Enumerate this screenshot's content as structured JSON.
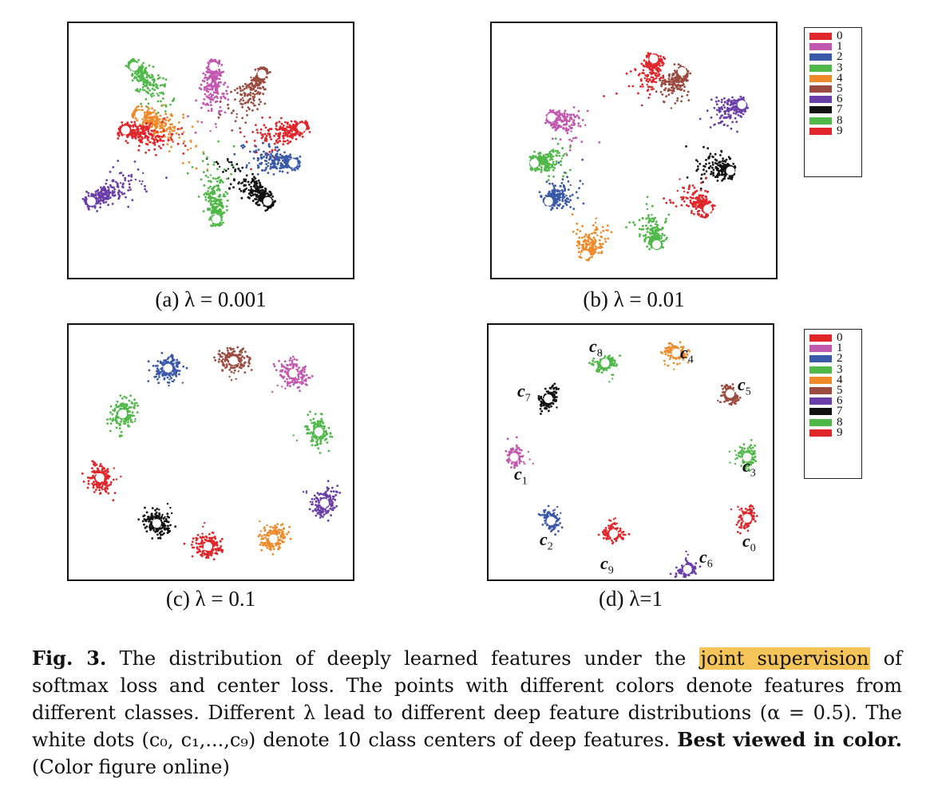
{
  "colors": {
    "0": "#e0262b",
    "1": "#c257b0",
    "2": "#3a59a8",
    "3": "#4fb848",
    "4": "#ee8a2a",
    "5": "#9a4a3e",
    "6": "#6a3ea8",
    "7": "#111111",
    "8": "#4fb848",
    "9": "#e0262b"
  },
  "legend_labels": [
    "0",
    "1",
    "2",
    "3",
    "4",
    "5",
    "6",
    "7",
    "8",
    "9"
  ],
  "panels": [
    {
      "id": "a",
      "caption": "(a)  λ = 0.001"
    },
    {
      "id": "b",
      "caption": "(b)  λ = 0.01"
    },
    {
      "id": "c",
      "caption": "(c)  λ = 0.1"
    },
    {
      "id": "d",
      "caption": "(d)  λ=1"
    }
  ],
  "center_labels": [
    "c",
    "0",
    "c",
    "1",
    "c",
    "2",
    "c",
    "3",
    "c",
    "4",
    "c",
    "5",
    "c",
    "6",
    "c",
    "7",
    "c",
    "8",
    "c",
    "9"
  ],
  "figure_caption": {
    "fig_label": "Fig. 3.",
    "text_before": " The distribution of deeply learned features under the ",
    "highlight": "joint supervision",
    "text_after": " of softmax loss and center loss. The points with different colors denote features from different classes. Different λ lead to different deep feature distributions (α = 0.5). The white dots (c₀, c₁,...,c₉) denote 10 class centers of deep features. ",
    "bold_end": "Best viewed in color.",
    "tail": " (Color figure online)"
  },
  "chart_data": [
    {
      "type": "scatter",
      "title": "(a)  λ = 0.001",
      "series": [
        {
          "name": "0",
          "center": [
            0.82,
            0.41
          ]
        },
        {
          "name": "1",
          "center": [
            0.51,
            0.17
          ]
        },
        {
          "name": "2",
          "center": [
            0.79,
            0.55
          ]
        },
        {
          "name": "3",
          "center": [
            0.23,
            0.17
          ]
        },
        {
          "name": "4",
          "center": [
            0.25,
            0.36
          ]
        },
        {
          "name": "5",
          "center": [
            0.68,
            0.2
          ]
        },
        {
          "name": "6",
          "center": [
            0.08,
            0.7
          ]
        },
        {
          "name": "7",
          "center": [
            0.7,
            0.7
          ]
        },
        {
          "name": "8",
          "center": [
            0.52,
            0.77
          ]
        },
        {
          "name": "9",
          "center": [
            0.2,
            0.42
          ]
        }
      ]
    },
    {
      "type": "scatter",
      "title": "(b)  λ = 0.01",
      "series": [
        {
          "name": "0",
          "center": [
            0.57,
            0.14
          ]
        },
        {
          "name": "1",
          "center": [
            0.21,
            0.37
          ]
        },
        {
          "name": "2",
          "center": [
            0.2,
            0.7
          ]
        },
        {
          "name": "3",
          "center": [
            0.15,
            0.55
          ]
        },
        {
          "name": "4",
          "center": [
            0.33,
            0.91
          ]
        },
        {
          "name": "5",
          "center": [
            0.67,
            0.19
          ]
        },
        {
          "name": "6",
          "center": [
            0.88,
            0.32
          ]
        },
        {
          "name": "7",
          "center": [
            0.84,
            0.58
          ]
        },
        {
          "name": "8",
          "center": [
            0.58,
            0.87
          ]
        },
        {
          "name": "9",
          "center": [
            0.76,
            0.73
          ]
        }
      ]
    },
    {
      "type": "scatter",
      "title": "(c)  λ = 0.1",
      "series": [
        {
          "name": "0",
          "center": [
            0.11,
            0.6
          ]
        },
        {
          "name": "1",
          "center": [
            0.79,
            0.19
          ]
        },
        {
          "name": "2",
          "center": [
            0.35,
            0.17
          ]
        },
        {
          "name": "3",
          "center": [
            0.88,
            0.42
          ]
        },
        {
          "name": "4",
          "center": [
            0.72,
            0.84
          ]
        },
        {
          "name": "5",
          "center": [
            0.58,
            0.14
          ]
        },
        {
          "name": "6",
          "center": [
            0.9,
            0.7
          ]
        },
        {
          "name": "7",
          "center": [
            0.31,
            0.78
          ]
        },
        {
          "name": "8",
          "center": [
            0.19,
            0.35
          ]
        },
        {
          "name": "9",
          "center": [
            0.49,
            0.87
          ]
        }
      ]
    },
    {
      "type": "scatter",
      "title": "(d)  λ=1",
      "series": [
        {
          "name": "0",
          "center": [
            0.91,
            0.76
          ]
        },
        {
          "name": "1",
          "center": [
            0.09,
            0.52
          ]
        },
        {
          "name": "2",
          "center": [
            0.22,
            0.77
          ]
        },
        {
          "name": "3",
          "center": [
            0.91,
            0.52
          ]
        },
        {
          "name": "4",
          "center": [
            0.66,
            0.11
          ]
        },
        {
          "name": "5",
          "center": [
            0.85,
            0.27
          ]
        },
        {
          "name": "6",
          "center": [
            0.7,
            0.96
          ]
        },
        {
          "name": "7",
          "center": [
            0.21,
            0.29
          ]
        },
        {
          "name": "8",
          "center": [
            0.41,
            0.15
          ]
        },
        {
          "name": "9",
          "center": [
            0.44,
            0.82
          ]
        }
      ]
    }
  ]
}
